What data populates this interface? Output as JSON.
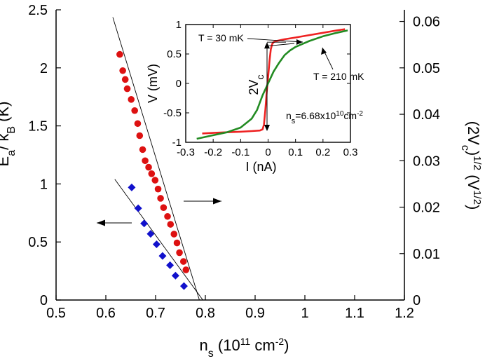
{
  "chart_data": [
    {
      "type": "scatter",
      "role": "main",
      "xlabel": {
        "base": "n",
        "sub": "s",
        "pre": " (10",
        "sup": "11",
        "post": " cm",
        "sup2": "-2",
        "end": ")"
      },
      "ylabel_left": {
        "base": "E",
        "sub1": "a",
        "mid": "/ k",
        "sub2": "B",
        "post": " (K)"
      },
      "ylabel_right": {
        "pre": "(2V",
        "sub": "c",
        "mid": ")",
        "sup": "1/2",
        "post": " (V",
        "sup2": "1/2",
        "end": ")"
      },
      "xlim": [
        0.5,
        1.2
      ],
      "ylim_left": [
        0,
        2.5
      ],
      "ylim_right": [
        0,
        0.0625
      ],
      "xticks": [
        0.5,
        0.6,
        0.7,
        0.8,
        0.9,
        1.0,
        1.1,
        1.2
      ],
      "xtick_labels": [
        "0.5",
        "0.6",
        "0.7",
        "0.8",
        "0.9",
        "1",
        "1.1",
        "1.2"
      ],
      "yticks_left": [
        0,
        0.5,
        1.0,
        1.5,
        2.0,
        2.5
      ],
      "ytick_labels_left": [
        "0",
        "0.5",
        "1",
        "1.5",
        "2",
        "2.5"
      ],
      "yticks_right": [
        0,
        0.01,
        0.02,
        0.03,
        0.04,
        0.05,
        0.06
      ],
      "ytick_labels_right": [
        "0",
        "0.01",
        "0.02",
        "0.03",
        "0.04",
        "0.05",
        "0.06"
      ],
      "series": [
        {
          "axis": "right",
          "marker": "circle",
          "color": "#dd1111",
          "x": [
            0.628,
            0.634,
            0.639,
            0.643,
            0.651,
            0.658,
            0.664,
            0.668,
            0.674,
            0.679,
            0.686,
            0.692,
            0.699,
            0.705,
            0.71,
            0.716,
            0.724,
            0.73,
            0.737,
            0.743,
            0.748,
            0.756,
            0.761
          ],
          "y": [
            0.0529,
            0.0494,
            0.0475,
            0.0455,
            0.0432,
            0.0408,
            0.038,
            0.0354,
            0.0324,
            0.03,
            0.0286,
            0.0272,
            0.0258,
            0.0239,
            0.0219,
            0.0199,
            0.018,
            0.0163,
            0.0142,
            0.0123,
            0.0102,
            0.0083,
            0.0065
          ]
        },
        {
          "axis": "left",
          "marker": "diamond",
          "color": "#1111cc",
          "x": [
            0.652,
            0.665,
            0.677,
            0.69,
            0.702,
            0.714,
            0.729,
            0.74,
            0.757
          ],
          "y": [
            0.97,
            0.79,
            0.66,
            0.57,
            0.48,
            0.38,
            0.3,
            0.21,
            0.12
          ]
        }
      ],
      "fit_lines": [
        {
          "axis": "right",
          "x": [
            0.614,
            0.788
          ],
          "y": [
            0.0609,
            0.0
          ]
        },
        {
          "axis": "left",
          "x": [
            0.618,
            0.795
          ],
          "y": [
            1.04,
            0.0
          ]
        }
      ],
      "arrows": [
        {
          "label": "points-to-left-axis",
          "direction": "left"
        },
        {
          "label": "points-to-right-axis",
          "direction": "right"
        }
      ]
    },
    {
      "type": "line",
      "role": "inset",
      "xlabel": "I (nA)",
      "ylabel": "V (mV)",
      "xlim": [
        -0.3,
        0.3
      ],
      "ylim": [
        -1,
        1
      ],
      "xticks": [
        -0.3,
        -0.2,
        -0.1,
        0,
        0.1,
        0.2,
        0.3
      ],
      "xtick_labels": [
        "-0.3",
        "-0.2",
        "-0.1",
        "0",
        "0.1",
        "0.2",
        "0.3"
      ],
      "yticks": [
        -1,
        -0.5,
        0,
        0.5,
        1
      ],
      "ytick_labels": [
        "-1",
        "-0.5",
        "0",
        "0.5",
        "1"
      ],
      "series": [
        {
          "name": "T = 30 mK",
          "color": "#ee2222",
          "x": [
            -0.24,
            -0.2,
            -0.15,
            -0.1,
            -0.06,
            -0.03,
            -0.02,
            -0.015,
            -0.01,
            -0.005,
            0,
            0.005,
            0.01,
            0.015,
            0.02,
            0.03,
            0.06,
            0.1,
            0.15,
            0.2,
            0.25,
            0.28
          ],
          "y": [
            -0.85,
            -0.84,
            -0.83,
            -0.82,
            -0.81,
            -0.8,
            -0.78,
            -0.7,
            -0.45,
            -0.15,
            0.1,
            0.38,
            0.58,
            0.67,
            0.7,
            0.72,
            0.75,
            0.78,
            0.82,
            0.86,
            0.9,
            0.92
          ]
        },
        {
          "name": "T = 210 mK",
          "color": "#228b22",
          "x": [
            -0.26,
            -0.2,
            -0.15,
            -0.1,
            -0.06,
            -0.04,
            -0.02,
            0,
            0.02,
            0.04,
            0.06,
            0.08,
            0.1,
            0.12,
            0.15,
            0.2,
            0.25,
            0.29
          ],
          "y": [
            -0.94,
            -0.88,
            -0.83,
            -0.75,
            -0.6,
            -0.45,
            -0.2,
            0.0,
            0.2,
            0.35,
            0.48,
            0.56,
            0.62,
            0.66,
            0.72,
            0.8,
            0.86,
            0.9
          ]
        }
      ],
      "annotations": {
        "label_30mk": "T = 30 mK",
        "label_210mk": "T = 210 mK",
        "vc_label": {
          "pre": "2V",
          "sub": "c"
        },
        "ns_label": {
          "pre": "n",
          "sub": "s",
          "mid": "=6.68x10",
          "sup": "10",
          "post": "cm",
          "sup2": "-2"
        }
      }
    }
  ]
}
